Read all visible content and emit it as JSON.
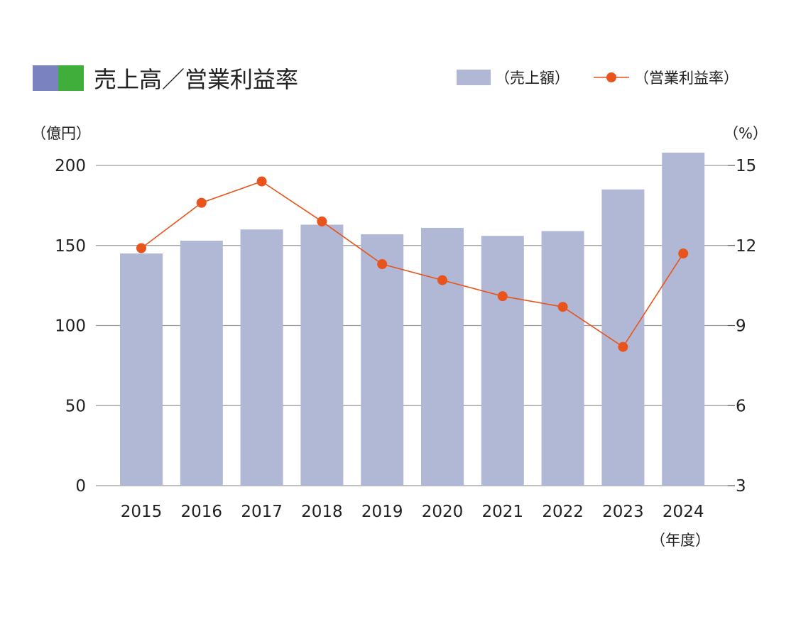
{
  "header": {
    "title": "売上高／営業利益率",
    "title_swatches": [
      "#7b82c0",
      "#3fae3a"
    ]
  },
  "legend": {
    "bar_label": "（売上額）",
    "line_label": "（営業利益率）"
  },
  "colors": {
    "bar": "#b1b8d6",
    "line": "#e8541c",
    "grid": "#9a9a9a"
  },
  "chart_data": {
    "type": "bar",
    "categories": [
      "2015",
      "2016",
      "2017",
      "2018",
      "2019",
      "2020",
      "2021",
      "2022",
      "2023",
      "2024"
    ],
    "series": [
      {
        "name": "売上額",
        "type": "bar",
        "axis": "left",
        "values": [
          145,
          153,
          160,
          163,
          157,
          161,
          156,
          159,
          185,
          208
        ]
      },
      {
        "name": "営業利益率",
        "type": "line",
        "axis": "right",
        "values": [
          11.9,
          13.6,
          14.4,
          12.9,
          11.3,
          10.7,
          10.1,
          9.7,
          8.2,
          11.7
        ]
      }
    ],
    "y_left": {
      "unit": "（億円）",
      "ticks": [
        "0",
        "50",
        "100",
        "150",
        "200"
      ],
      "min": 0,
      "max": 200
    },
    "y_right": {
      "unit": "（%）",
      "ticks": [
        "3",
        "6",
        "9",
        "12",
        "15"
      ],
      "min": 3,
      "max": 15
    },
    "x_unit": "（年度）",
    "grid": true,
    "legend_position": "top-right"
  }
}
